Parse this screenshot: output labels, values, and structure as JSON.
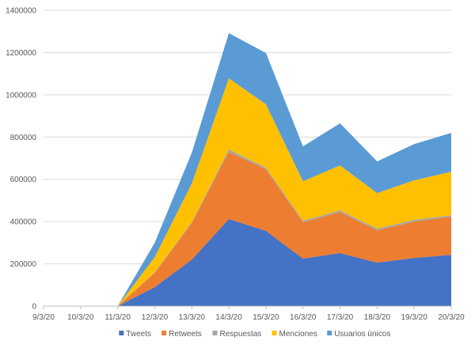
{
  "chart_data": {
    "type": "area",
    "stacked": true,
    "categories": [
      "9/3/20",
      "10/3/20",
      "11/3/20",
      "12/3/20",
      "13/3/20",
      "14/3/20",
      "15/3/20",
      "16/3/20",
      "17/3/20",
      "18/3/20",
      "19/3/20",
      "20/3/20"
    ],
    "ylim": [
      0,
      1400000
    ],
    "yticks": [
      0,
      200000,
      400000,
      600000,
      800000,
      1000000,
      1200000,
      1400000
    ],
    "grid": true,
    "legend_position": "bottom",
    "series": [
      {
        "name": "Tweets",
        "color": "#4472C4",
        "values": [
          0,
          0,
          0,
          90000,
          220000,
          412000,
          356000,
          225000,
          251000,
          206000,
          228000,
          243000
        ]
      },
      {
        "name": "Retweets",
        "color": "#ED7D31",
        "values": [
          0,
          0,
          0,
          67000,
          173000,
          318000,
          291000,
          172000,
          194000,
          153000,
          172000,
          180000
        ]
      },
      {
        "name": "Respuestas",
        "color": "#A5A5A5",
        "values": [
          0,
          0,
          0,
          3000,
          5000,
          11000,
          8000,
          7000,
          8000,
          8000,
          8000,
          7000
        ]
      },
      {
        "name": "Menciones",
        "color": "#FFC000",
        "values": [
          0,
          0,
          0,
          72000,
          182000,
          337000,
          300000,
          187000,
          213000,
          168000,
          187000,
          206000
        ]
      },
      {
        "name": "Usuarios únicos",
        "color": "#5B9BD5",
        "values": [
          0,
          0,
          0,
          68000,
          146000,
          214000,
          243000,
          165000,
          199000,
          150000,
          172000,
          184000
        ]
      }
    ]
  }
}
